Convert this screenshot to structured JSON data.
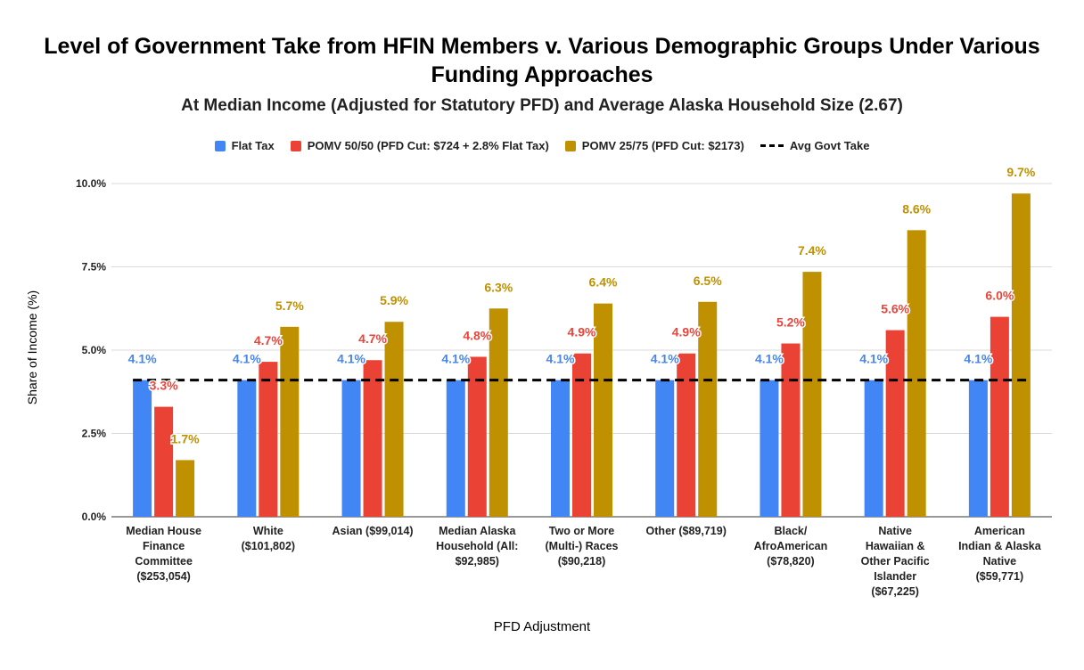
{
  "chart_data": {
    "type": "bar",
    "title": "Level of Government Take from HFIN Members v. Various Demographic Groups Under Various Funding Approaches",
    "subtitle": "At Median Income (Adjusted for Statutory PFD) and Average Alaska Household Size (2.67)",
    "xlabel": "PFD Adjustment",
    "ylabel": "Share of Income (%)",
    "ylim": [
      0,
      10
    ],
    "yticks": [
      0,
      2.5,
      5,
      7.5,
      10
    ],
    "ytick_labels": [
      "0.0%",
      "2.5%",
      "5.0%",
      "7.5%",
      "10.0%"
    ],
    "grid": true,
    "legend_position": "top",
    "categories": [
      [
        "Median House",
        "Finance",
        "Committee",
        "($253,054)"
      ],
      [
        "White",
        "($101,802)"
      ],
      [
        "Asian ($99,014)"
      ],
      [
        "Median Alaska",
        "Household (All:",
        "$92,985)"
      ],
      [
        "Two or More",
        "(Multi-) Races",
        "($90,218)"
      ],
      [
        "Other ($89,719)"
      ],
      [
        "Black/",
        "AfroAmerican",
        "($78,820)"
      ],
      [
        "Native",
        "Hawaiian &",
        "Other Pacific",
        "Islander",
        "($67,225)"
      ],
      [
        "American",
        "Indian & Alaska",
        "Native",
        "($59,771)"
      ]
    ],
    "series": [
      {
        "name": "Flat Tax",
        "color": "#4285f4",
        "label_color": "#4a86e8",
        "values": [
          4.1,
          4.1,
          4.1,
          4.1,
          4.1,
          4.1,
          4.1,
          4.1,
          4.1
        ],
        "labels": [
          "4.1%",
          "4.1%",
          "4.1%",
          "4.1%",
          "4.1%",
          "4.1%",
          "4.1%",
          "4.1%",
          "4.1%"
        ]
      },
      {
        "name": "POMV 50/50 (PFD Cut: $724 + 2.8% Flat Tax)",
        "color": "#ea4335",
        "label_color": "#e8453c",
        "values": [
          3.3,
          4.65,
          4.7,
          4.8,
          4.9,
          4.9,
          5.2,
          5.6,
          6.0
        ],
        "labels": [
          "3.3%",
          "4.7%",
          "4.7%",
          "4.8%",
          "4.9%",
          "4.9%",
          "5.2%",
          "5.6%",
          "6.0%"
        ]
      },
      {
        "name": "POMV 25/75 (PFD Cut: $2173)",
        "color": "#bf9000",
        "label_color": "#bf9000",
        "values": [
          1.7,
          5.7,
          5.85,
          6.25,
          6.4,
          6.45,
          7.35,
          8.6,
          9.7
        ],
        "labels": [
          "1.7%",
          "5.7%",
          "5.9%",
          "6.3%",
          "6.4%",
          "6.5%",
          "7.4%",
          "8.6%",
          "9.7%"
        ]
      }
    ],
    "reference_line": {
      "name": "Avg Govt Take",
      "value": 4.1,
      "color": "#000000",
      "style": "dashed"
    }
  }
}
